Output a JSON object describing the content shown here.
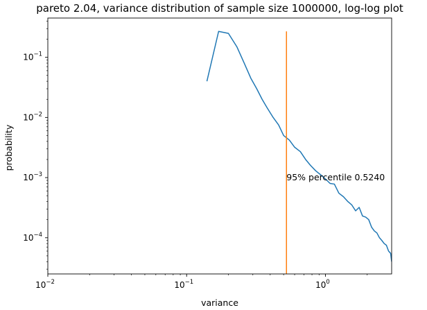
{
  "chart_data": {
    "type": "line",
    "title": "pareto 2.04, variance distribution of sample size 1000000, log-log plot",
    "xlabel": "variance",
    "ylabel": "probability",
    "xscale": "log",
    "yscale": "log",
    "xlim": [
      0.01,
      3.0
    ],
    "ylim": [
      2.5e-05,
      0.45
    ],
    "grid": false,
    "x_ticks": [
      {
        "value": 0.01,
        "base": "10",
        "exp": "−2"
      },
      {
        "value": 0.1,
        "base": "10",
        "exp": "−1"
      },
      {
        "value": 1,
        "base": "10",
        "exp": "0"
      }
    ],
    "y_ticks": [
      {
        "value": 0.0001,
        "base": "10",
        "exp": "−4"
      },
      {
        "value": 0.001,
        "base": "10",
        "exp": "−3"
      },
      {
        "value": 0.01,
        "base": "10",
        "exp": "−2"
      },
      {
        "value": 0.1,
        "base": "10",
        "exp": "−1"
      }
    ],
    "series": [
      {
        "color": "#1f77b4",
        "x": [
          0.14,
          0.17,
          0.2,
          0.23,
          0.26,
          0.29,
          0.32,
          0.35,
          0.38,
          0.42,
          0.46,
          0.5,
          0.55,
          0.6,
          0.66,
          0.72,
          0.78,
          0.85,
          0.93,
          1.0,
          1.08,
          1.16,
          1.25,
          1.35,
          1.45,
          1.55,
          1.65,
          1.75,
          1.85,
          1.95,
          2.05,
          2.15,
          2.25,
          2.35,
          2.45,
          2.55,
          2.65,
          2.75,
          2.85,
          2.95,
          3.0
        ],
        "y": [
          0.04,
          0.27,
          0.25,
          0.15,
          0.08,
          0.045,
          0.03,
          0.02,
          0.0145,
          0.01,
          0.0075,
          0.005,
          0.0042,
          0.0032,
          0.0027,
          0.002,
          0.0016,
          0.0013,
          0.0011,
          0.00095,
          0.0008,
          0.00078,
          0.00055,
          0.00048,
          0.0004,
          0.00035,
          0.00028,
          0.00032,
          0.00023,
          0.00022,
          0.0002,
          0.00015,
          0.00013,
          0.00012,
          0.0001,
          9e-05,
          8e-05,
          7.5e-05,
          6e-05,
          5.5e-05,
          4e-05
        ]
      }
    ],
    "vline": {
      "x": 0.524,
      "color": "#ff7f0e",
      "y_top": 0.27,
      "y_bottom": 2.5e-05
    },
    "annotation": {
      "text": "95% percentile 0.5240",
      "x": 0.53,
      "y": 0.001
    }
  }
}
